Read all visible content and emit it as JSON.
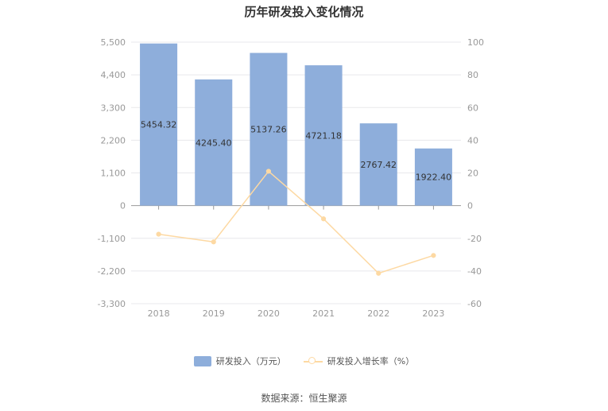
{
  "title": "历年研发投入变化情况",
  "source": "数据来源：恒生聚源",
  "colors": {
    "bar": "#8eaedb",
    "line": "#fdd9a3",
    "grid": "#e8e8ec",
    "axis_text": "#999999",
    "label_text": "#333333"
  },
  "chart_data": {
    "type": "bar",
    "title": "历年研发投入变化情况",
    "categories": [
      "2018",
      "2019",
      "2020",
      "2021",
      "2022",
      "2023"
    ],
    "series": [
      {
        "name": "研发投入（万元）",
        "type": "bar",
        "axis": "left",
        "values": [
          5454.32,
          4245.4,
          5137.26,
          4721.18,
          2767.42,
          1922.4
        ],
        "labels": [
          "5454.32",
          "4245.40",
          "5137.26",
          "4721.18",
          "2767.42",
          "1922.40"
        ]
      },
      {
        "name": "研发投入增长率（%）",
        "type": "line",
        "axis": "right",
        "values": [
          -17.5,
          -22.2,
          21.0,
          -8.1,
          -41.4,
          -30.5
        ]
      }
    ],
    "y_left": {
      "min": -3300,
      "max": 5500,
      "ticks": [
        5500,
        4400,
        3300,
        2200,
        1100,
        0,
        -1100,
        -2200,
        -3300
      ],
      "tick_labels": [
        "5,500",
        "4,400",
        "3,300",
        "2,200",
        "1,100",
        "0",
        "-1,100",
        "-2,200",
        "-3,300"
      ]
    },
    "y_right": {
      "min": -60,
      "max": 100,
      "ticks": [
        100,
        80,
        60,
        40,
        20,
        0,
        -20,
        -40,
        -60
      ],
      "tick_labels": [
        "100",
        "80",
        "60",
        "40",
        "20",
        "0",
        "-20",
        "-40",
        "-60"
      ]
    },
    "grid": true,
    "legend_position": "bottom"
  }
}
